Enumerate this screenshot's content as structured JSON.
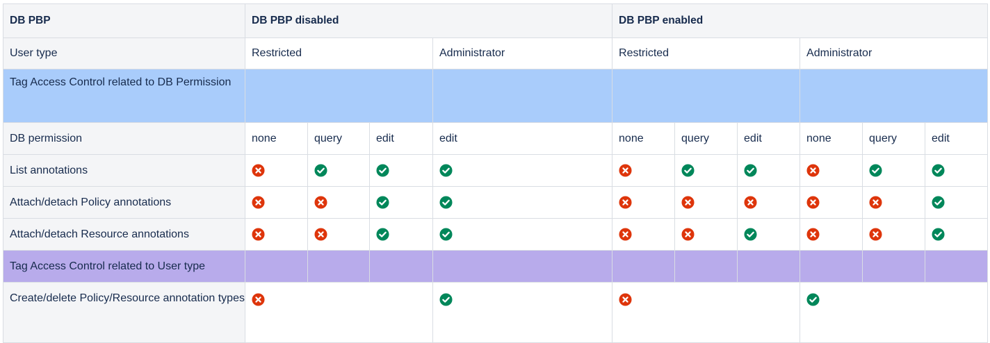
{
  "colors": {
    "cross": "#de350b",
    "check": "#00875a",
    "header_bg": "#f4f5f7",
    "blue_band": "#a9ccfb",
    "purple_band": "#b8abeb"
  },
  "header": {
    "col0": "DB PBP",
    "disabled": "DB PBP disabled",
    "enabled": "DB PBP enabled"
  },
  "user_type": {
    "label": "User type",
    "disabled_restricted": "Restricted",
    "disabled_admin": "Administrator",
    "enabled_restricted": "Restricted",
    "enabled_admin": "Administrator"
  },
  "sections": {
    "db_permission": "Tag Access Control related to DB Permission",
    "user_type": "Tag Access Control related to User type"
  },
  "db_permission": {
    "label": "DB permission",
    "values": [
      "none",
      "query",
      "edit",
      "edit",
      "none",
      "query",
      "edit",
      "none",
      "query",
      "edit"
    ]
  },
  "rows": [
    {
      "label": "List annotations",
      "marks": [
        "cross-icon",
        "check-icon",
        "check-icon",
        "check-icon",
        "cross-icon",
        "check-icon",
        "check-icon",
        "cross-icon",
        "check-icon",
        "check-icon"
      ]
    },
    {
      "label": "Attach/detach Policy annotations",
      "marks": [
        "cross-icon",
        "cross-icon",
        "check-icon",
        "check-icon",
        "cross-icon",
        "cross-icon",
        "cross-icon",
        "cross-icon",
        "cross-icon",
        "check-icon"
      ]
    },
    {
      "label": "Attach/detach Resource annotations",
      "marks": [
        "cross-icon",
        "cross-icon",
        "check-icon",
        "check-icon",
        "cross-icon",
        "cross-icon",
        "check-icon",
        "cross-icon",
        "cross-icon",
        "check-icon"
      ]
    }
  ],
  "last_row": {
    "label": "Create/delete Policy/Resource annotation types",
    "marks": [
      "cross-icon",
      "check-icon",
      "cross-icon",
      "check-icon"
    ]
  }
}
